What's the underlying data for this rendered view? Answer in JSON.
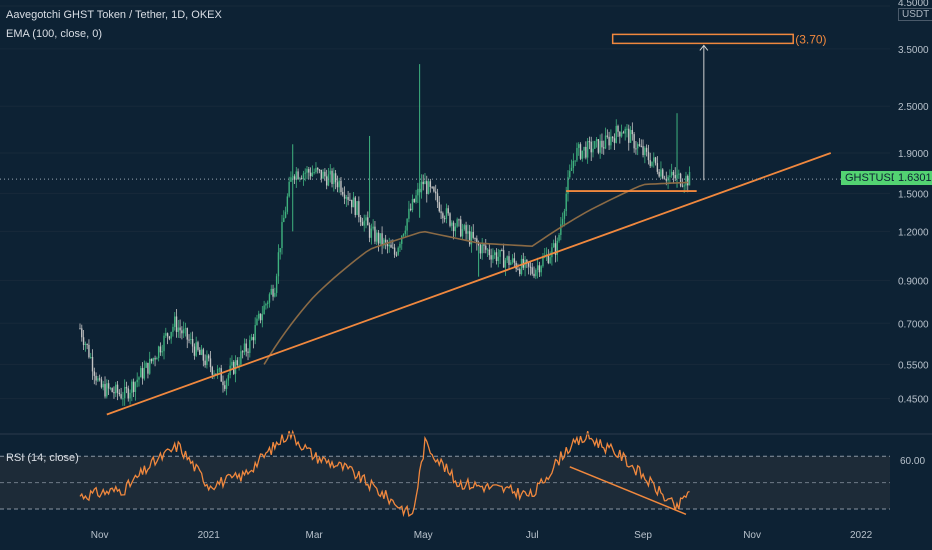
{
  "header": {
    "title": "Aavegotchi GHST Token / Tether, 1D, OKEX",
    "indicator": "EMA (100, close, 0)",
    "rsi": "RSI (14, close)"
  },
  "price_scale": {
    "currency": "USDT",
    "symbol": "GHSTUSDT",
    "current_price": "1.6301"
  },
  "rsi_scale": {
    "tick": "60.00"
  },
  "annotations": {
    "target": "(3.70)"
  },
  "colors": {
    "background": "#0d2234",
    "candle_up": "#3fb37f",
    "candle_down": "#c4c4c4",
    "ema": "#8a6a45",
    "trendline": "#f0883e",
    "rsi": "#f0883e",
    "badge": "#53d372"
  },
  "chart_data": [
    {
      "type": "candlestick",
      "title": "Aavegotchi GHST Token / Tether, 1D, OKEX",
      "y_scale": "log",
      "ylim": [
        0.37,
        4.5
      ],
      "y_ticks": [
        4.5,
        3.5,
        2.5,
        1.9,
        1.5,
        1.2,
        0.9,
        0.7,
        0.55,
        0.45
      ],
      "x_ticks": [
        "Nov",
        "2021",
        "Mar",
        "May",
        "Jul",
        "Sep",
        "Nov",
        "2022"
      ],
      "series": [
        {
          "name": "GHSTUSDT",
          "approx_close": [
            {
              "date": "2020-10-21",
              "value": 0.68
            },
            {
              "date": "2020-11-01",
              "value": 0.48
            },
            {
              "date": "2020-11-15",
              "value": 0.46
            },
            {
              "date": "2020-11-29",
              "value": 0.55
            },
            {
              "date": "2020-12-13",
              "value": 0.7
            },
            {
              "date": "2020-12-27",
              "value": 0.58
            },
            {
              "date": "2021-01-10",
              "value": 0.5
            },
            {
              "date": "2021-01-24",
              "value": 0.62
            },
            {
              "date": "2021-02-07",
              "value": 0.88
            },
            {
              "date": "2021-02-17",
              "value": 1.7
            },
            {
              "date": "2021-03-01",
              "value": 1.7
            },
            {
              "date": "2021-03-15",
              "value": 1.6
            },
            {
              "date": "2021-04-01",
              "value": 1.2
            },
            {
              "date": "2021-04-15",
              "value": 1.05
            },
            {
              "date": "2021-05-01",
              "value": 1.6
            },
            {
              "date": "2021-05-15",
              "value": 1.3
            },
            {
              "date": "2021-06-01",
              "value": 1.1
            },
            {
              "date": "2021-06-15",
              "value": 1.02
            },
            {
              "date": "2021-07-01",
              "value": 0.95
            },
            {
              "date": "2021-07-15",
              "value": 1.1
            },
            {
              "date": "2021-07-25",
              "value": 1.9
            },
            {
              "date": "2021-08-10",
              "value": 2.0
            },
            {
              "date": "2021-08-20",
              "value": 2.2
            },
            {
              "date": "2021-09-01",
              "value": 1.9
            },
            {
              "date": "2021-09-15",
              "value": 1.65
            },
            {
              "date": "2021-09-27",
              "value": 1.63
            }
          ]
        },
        {
          "name": "EMA (100, close, 0)",
          "approx_values": [
            {
              "date": "2021-02-01",
              "value": 0.55
            },
            {
              "date": "2021-03-01",
              "value": 0.82
            },
            {
              "date": "2021-04-01",
              "value": 1.08
            },
            {
              "date": "2021-05-01",
              "value": 1.2
            },
            {
              "date": "2021-06-01",
              "value": 1.12
            },
            {
              "date": "2021-07-01",
              "value": 1.1
            },
            {
              "date": "2021-08-01",
              "value": 1.35
            },
            {
              "date": "2021-09-01",
              "value": 1.58
            },
            {
              "date": "2021-09-27",
              "value": 1.6
            }
          ]
        }
      ],
      "annotations": {
        "ascending_trendline": [
          {
            "date": "2020-11-05",
            "value": 0.41
          },
          {
            "date": "2021-12-15",
            "value": 1.9
          }
        ],
        "support_line": [
          {
            "date": "2021-07-20",
            "value": 1.52
          },
          {
            "date": "2021-10-01",
            "value": 1.52
          }
        ],
        "target_arrow_to": 3.7,
        "target_label": "(3.70)",
        "current_price": 1.6301
      }
    },
    {
      "type": "line",
      "title": "RSI (14, close)",
      "ylim": [
        20,
        90
      ],
      "y_ticks": [
        60
      ],
      "series": [
        {
          "name": "RSI (14, close)",
          "approx_values": [
            {
              "date": "2020-10-21",
              "value": 40
            },
            {
              "date": "2020-11-15",
              "value": 45
            },
            {
              "date": "2020-12-01",
              "value": 65
            },
            {
              "date": "2020-12-15",
              "value": 78
            },
            {
              "date": "2021-01-01",
              "value": 48
            },
            {
              "date": "2021-01-20",
              "value": 55
            },
            {
              "date": "2021-02-15",
              "value": 88
            },
            {
              "date": "2021-03-01",
              "value": 70
            },
            {
              "date": "2021-03-20",
              "value": 60
            },
            {
              "date": "2021-04-15",
              "value": 35
            },
            {
              "date": "2021-04-25",
              "value": 25
            },
            {
              "date": "2021-05-02",
              "value": 80
            },
            {
              "date": "2021-05-20",
              "value": 50
            },
            {
              "date": "2021-06-15",
              "value": 45
            },
            {
              "date": "2021-07-01",
              "value": 40
            },
            {
              "date": "2021-07-20",
              "value": 75
            },
            {
              "date": "2021-08-01",
              "value": 85
            },
            {
              "date": "2021-08-20",
              "value": 70
            },
            {
              "date": "2021-09-01",
              "value": 55
            },
            {
              "date": "2021-09-20",
              "value": 30
            },
            {
              "date": "2021-09-27",
              "value": 45
            }
          ]
        }
      ],
      "annotations": {
        "divergence_line": [
          {
            "date": "2021-07-22",
            "value": 62
          },
          {
            "date": "2021-09-25",
            "value": 26
          }
        ]
      }
    }
  ]
}
